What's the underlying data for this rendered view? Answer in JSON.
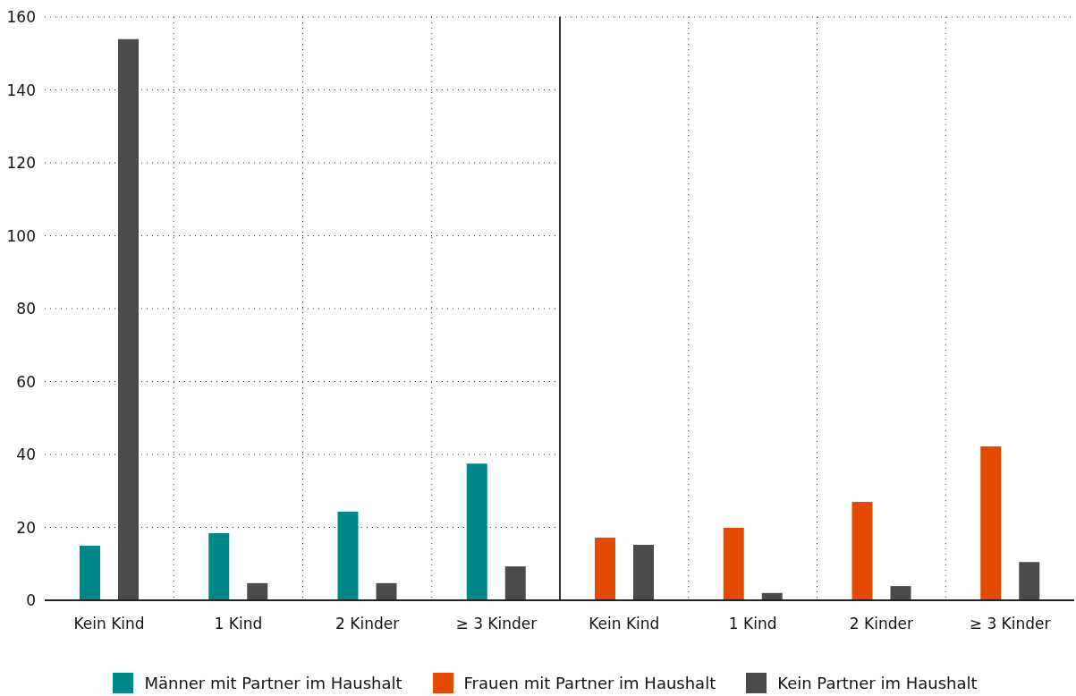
{
  "chart_data": [
    {
      "type": "bar",
      "categories": [
        "Kein Kind",
        "1 Kind",
        "2 Kinder",
        "≥ 3 Kinder"
      ],
      "series": [
        {
          "name": "Männer mit Partner im Haushalt",
          "color": "#00878a",
          "values": [
            15,
            18.4,
            24.3,
            37.5
          ]
        },
        {
          "name": "Kein Partner im Haushalt",
          "color": "#4b4b4a",
          "values": [
            153.9,
            4.7,
            4.7,
            9.3
          ]
        }
      ],
      "ylim": [
        0,
        160
      ],
      "yticks": [
        0,
        20,
        40,
        60,
        80,
        100,
        120,
        140,
        160
      ],
      "grid": true,
      "legend": "bottom"
    },
    {
      "type": "bar",
      "categories": [
        "Kein Kind",
        "1 Kind",
        "2 Kinder",
        "≥ 3 Kinder"
      ],
      "series": [
        {
          "name": "Frauen mit Partner im Haushalt",
          "color": "#e34a03",
          "values": [
            17.2,
            19.9,
            27,
            42.2
          ]
        },
        {
          "color": "#4b4b4a",
          "values": [
            15.2,
            2,
            3.9,
            10.5
          ]
        }
      ],
      "ylim": [
        0,
        160
      ],
      "yticks": [
        0,
        20,
        40,
        60,
        80,
        100,
        120,
        140,
        160
      ],
      "grid": true,
      "tick_labels": "x",
      "legend": "bottom"
    }
  ]
}
